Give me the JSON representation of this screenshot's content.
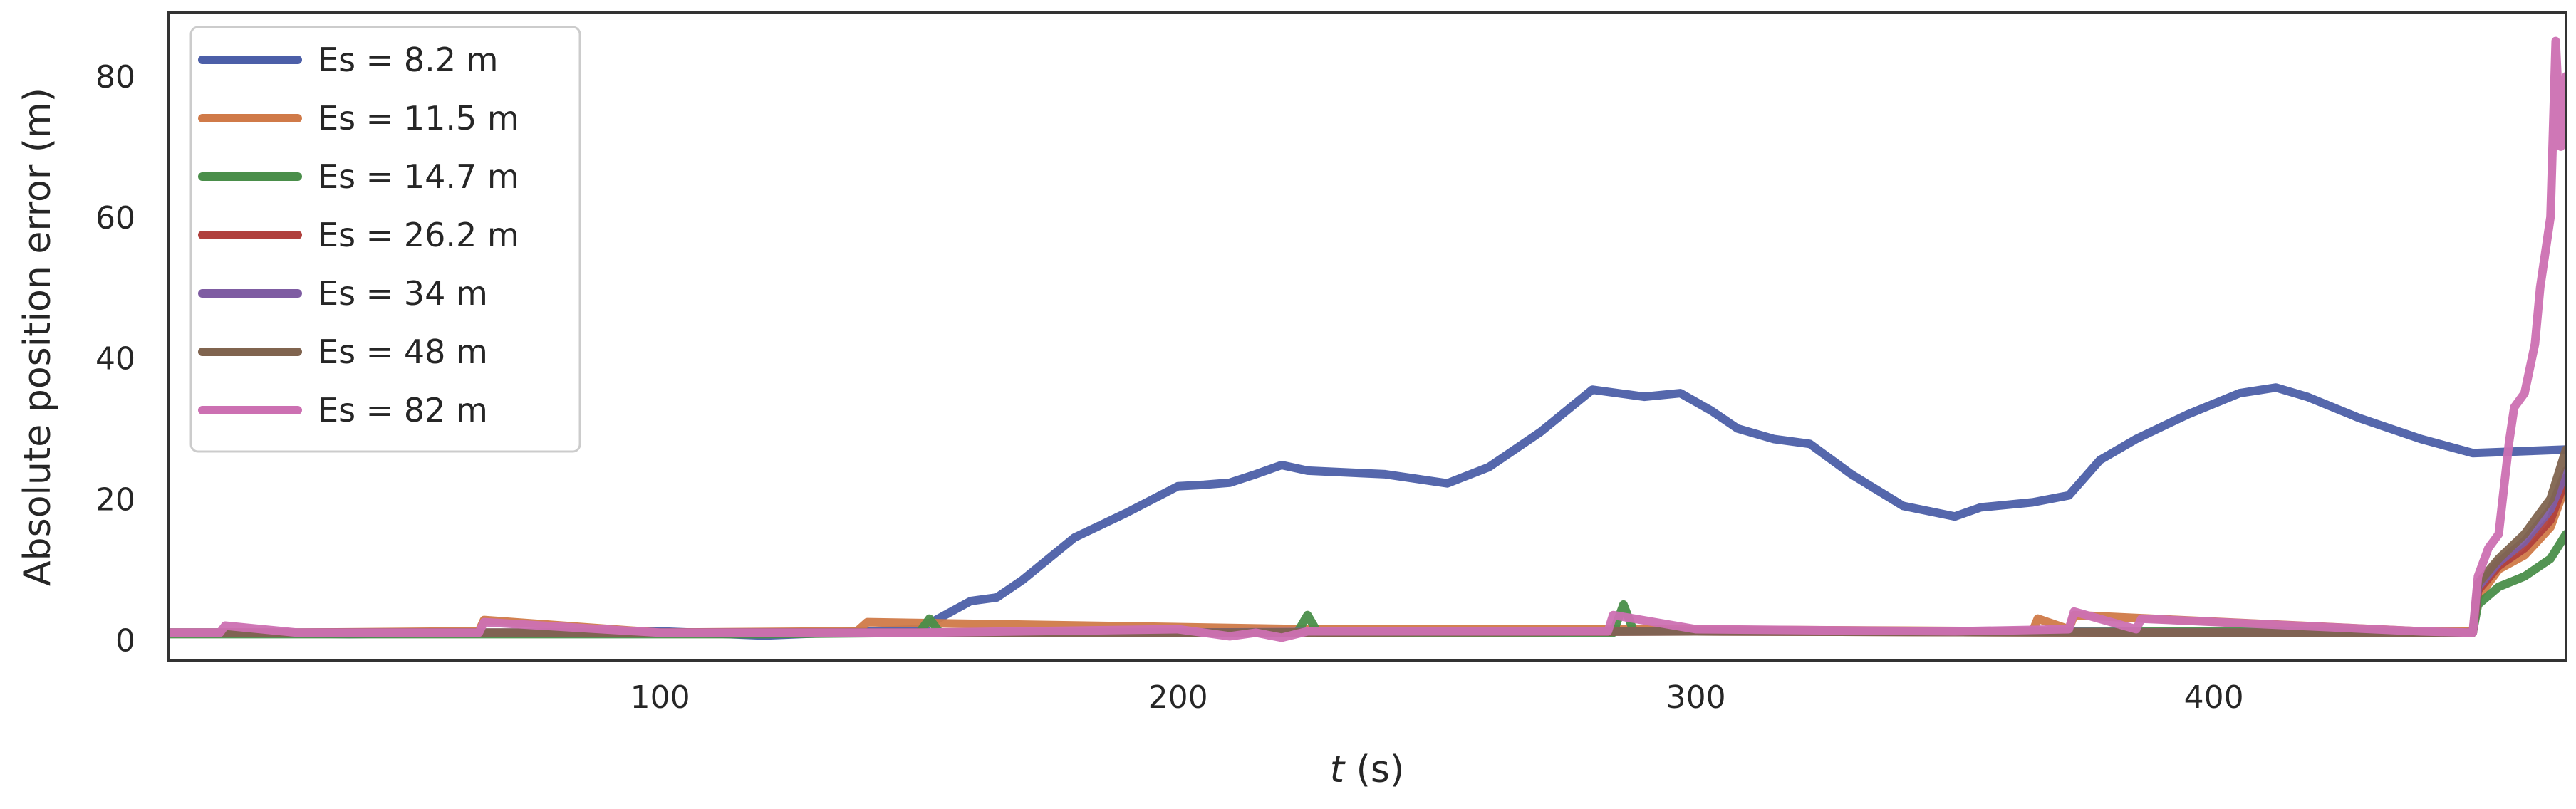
{
  "chart_data": {
    "type": "line",
    "xlabel_italic": "t",
    "xlabel_rest": " (s)",
    "ylabel": "Absolute position error (m)",
    "xlim": [
      5,
      468
    ],
    "ylim": [
      -3,
      89
    ],
    "xticks": [
      100,
      200,
      300,
      400
    ],
    "yticks": [
      0,
      20,
      40,
      60,
      80
    ],
    "grid": false,
    "legend": "top-left",
    "series": [
      {
        "name": "Es = 8.2 m",
        "color": "#4c5fa8",
        "x": [
          5,
          20,
          40,
          60,
          80,
          100,
          120,
          140,
          150,
          155,
          160,
          165,
          170,
          180,
          190,
          200,
          205,
          210,
          215,
          220,
          225,
          240,
          252,
          260,
          270,
          280,
          290,
          297,
          303,
          308,
          315,
          322,
          330,
          340,
          350,
          355,
          365,
          372,
          378,
          385,
          395,
          405,
          412,
          418,
          428,
          440,
          445,
          450,
          468
        ],
        "values": [
          1,
          1,
          0.8,
          1,
          1,
          1.2,
          0.6,
          1.2,
          1.5,
          3.5,
          5.5,
          6,
          8.5,
          14.5,
          18,
          21.8,
          22,
          22.3,
          23.5,
          24.8,
          24,
          23.5,
          22.2,
          24.5,
          29.5,
          35.5,
          34.5,
          35,
          32.5,
          30,
          28.5,
          27.8,
          23.5,
          19,
          17.5,
          18.8,
          19.5,
          20.5,
          25.5,
          28.5,
          32,
          35,
          35.8,
          34.5,
          31.5,
          28.5,
          27.5,
          26.5,
          27
        ]
      },
      {
        "name": "Es = 11.5 m",
        "color": "#d07a48",
        "x": [
          5,
          30,
          65,
          66,
          100,
          138,
          140,
          225,
          285,
          365,
          366,
          372,
          373,
          440,
          450,
          451,
          455,
          460,
          465,
          468
        ],
        "values": [
          1,
          1,
          1.2,
          2.8,
          1,
          1.2,
          2.5,
          1.5,
          1.5,
          1.2,
          3,
          1.5,
          3.5,
          1.2,
          1.2,
          6,
          10,
          12,
          16,
          22
        ]
      },
      {
        "name": "Es = 14.7 m",
        "color": "#4a8e4a",
        "x": [
          5,
          40,
          120,
          150,
          152,
          154,
          200,
          223,
          225,
          227,
          284,
          286,
          288,
          300,
          400,
          450,
          451,
          455,
          460,
          465,
          468
        ],
        "values": [
          0.8,
          0.8,
          0.8,
          1,
          3,
          1,
          1,
          1,
          3.5,
          1,
          1,
          5,
          1.2,
          1.2,
          1.2,
          1,
          5,
          7.5,
          9,
          11.5,
          15
        ]
      },
      {
        "name": "Es = 26.2 m",
        "color": "#b0403d",
        "x": [
          5,
          100,
          200,
          300,
          400,
          450,
          451,
          455,
          460,
          465,
          468
        ],
        "values": [
          1,
          1,
          1,
          1.2,
          1,
          1,
          7,
          10.5,
          13,
          17,
          23
        ]
      },
      {
        "name": "Es = 34 m",
        "color": "#7e5ca2",
        "x": [
          5,
          100,
          200,
          250,
          300,
          350,
          400,
          450,
          451,
          455,
          460,
          465,
          468
        ],
        "values": [
          1,
          1,
          1,
          1.2,
          1.2,
          1.2,
          1,
          1,
          7.5,
          11,
          14,
          18.5,
          24
        ]
      },
      {
        "name": "Es = 48 m",
        "color": "#80644f",
        "x": [
          5,
          100,
          200,
          300,
          400,
          450,
          451,
          455,
          460,
          465,
          468
        ],
        "values": [
          1,
          1,
          1,
          1.2,
          1,
          1,
          8,
          11.5,
          15,
          20,
          27
        ]
      },
      {
        "name": "Es = 82 m",
        "color": "#cc70b2",
        "x": [
          5,
          15,
          16,
          30,
          65,
          66,
          100,
          120,
          150,
          200,
          205,
          210,
          215,
          220,
          225,
          250,
          283,
          284,
          300,
          350,
          372,
          373,
          385,
          386,
          440,
          450,
          451,
          453,
          455,
          457,
          458,
          460,
          462,
          463,
          465,
          466,
          467,
          468
        ],
        "values": [
          1,
          1,
          2,
          1,
          1,
          2.5,
          1,
          1,
          1,
          1.5,
          1,
          0.5,
          1,
          0.3,
          1.2,
          1.2,
          1.2,
          3.5,
          1.5,
          1.2,
          1.5,
          4,
          1.5,
          3,
          1.2,
          1,
          9,
          13,
          15,
          28,
          33,
          35,
          42,
          50,
          60,
          85,
          70,
          80
        ]
      }
    ]
  }
}
